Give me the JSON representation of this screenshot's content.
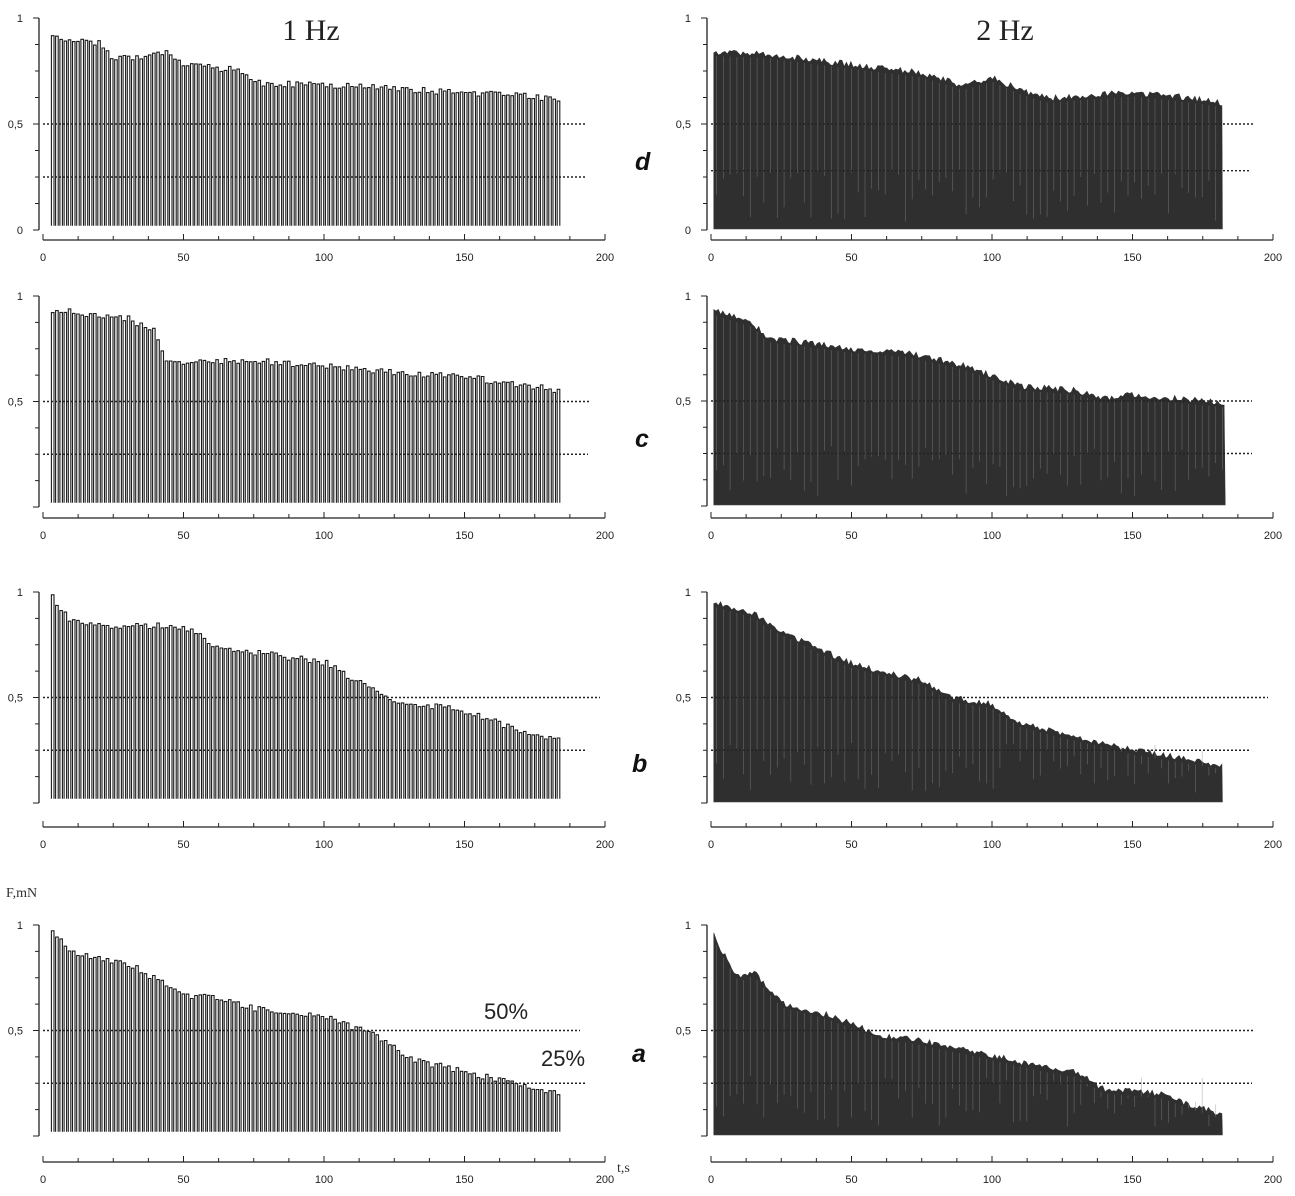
{
  "figure": {
    "col_titles": [
      "1 Hz",
      "2 Hz"
    ],
    "row_letters": [
      "d",
      "c",
      "b",
      "a"
    ],
    "ylabel": "F,mN",
    "xlabel": "t,s",
    "annotations": [
      "50%",
      "25%"
    ]
  },
  "chart_data": [
    {
      "id": "d-1hz",
      "type": "line",
      "title": "1 Hz",
      "panel_letter": "d",
      "freq_hz": 1,
      "xlim": [
        0,
        200
      ],
      "ylim": [
        0,
        1
      ],
      "x_ticks": [
        0,
        50,
        100,
        150,
        200
      ],
      "y_ticks": [
        "0",
        "0,5",
        "1"
      ],
      "reference_lines": [
        0.5,
        0.25
      ],
      "envelope": {
        "t": [
          3,
          10,
          20,
          25,
          30,
          45,
          50,
          60,
          70,
          75,
          100,
          150,
          170,
          183
        ],
        "peak": [
          0.93,
          0.91,
          0.9,
          0.82,
          0.83,
          0.85,
          0.79,
          0.78,
          0.77,
          0.71,
          0.7,
          0.66,
          0.65,
          0.63
        ]
      }
    },
    {
      "id": "d-2hz",
      "type": "line",
      "title": "2 Hz",
      "panel_letter": "d",
      "freq_hz": 2,
      "xlim": [
        0,
        200
      ],
      "ylim": [
        0,
        1
      ],
      "x_ticks": [
        0,
        50,
        100,
        150,
        200
      ],
      "y_ticks": [
        "0",
        "0,5",
        "1"
      ],
      "reference_lines": [
        0.5,
        0.28
      ],
      "envelope": {
        "t": [
          1,
          20,
          50,
          75,
          90,
          100,
          110,
          120,
          150,
          165,
          182
        ],
        "peak": [
          0.84,
          0.83,
          0.78,
          0.74,
          0.68,
          0.72,
          0.66,
          0.62,
          0.65,
          0.63,
          0.6
        ]
      }
    },
    {
      "id": "c-1hz",
      "type": "line",
      "title": "",
      "panel_letter": "c",
      "freq_hz": 1,
      "xlim": [
        0,
        200
      ],
      "ylim": [
        0,
        1
      ],
      "x_ticks": [
        0,
        50,
        100,
        150,
        200
      ],
      "y_ticks": [
        "0,5",
        "1"
      ],
      "reference_lines": [
        0.5,
        0.25
      ],
      "envelope": {
        "t": [
          3,
          30,
          40,
          43,
          50,
          75,
          100,
          150,
          183
        ],
        "peak": [
          0.95,
          0.91,
          0.84,
          0.7,
          0.7,
          0.71,
          0.68,
          0.63,
          0.57
        ]
      }
    },
    {
      "id": "c-2hz",
      "type": "line",
      "title": "",
      "panel_letter": "c",
      "freq_hz": 2,
      "xlim": [
        0,
        200
      ],
      "ylim": [
        0,
        1
      ],
      "x_ticks": [
        0,
        50,
        100,
        150,
        200
      ],
      "y_ticks": [
        "0,5",
        "1"
      ],
      "reference_lines": [
        0.5,
        0.25
      ],
      "envelope": {
        "t": [
          1,
          15,
          20,
          50,
          70,
          90,
          100,
          110,
          130,
          140,
          150,
          183
        ],
        "peak": [
          0.93,
          0.87,
          0.8,
          0.75,
          0.73,
          0.67,
          0.62,
          0.57,
          0.55,
          0.51,
          0.53,
          0.49
        ]
      }
    },
    {
      "id": "b-1hz",
      "type": "line",
      "title": "",
      "panel_letter": "b",
      "freq_hz": 1,
      "xlim": [
        0,
        200
      ],
      "ylim": [
        0,
        1
      ],
      "x_ticks": [
        0,
        50,
        100,
        150,
        200
      ],
      "y_ticks": [
        "0,5",
        "1"
      ],
      "reference_lines": [
        0.5,
        0.25
      ],
      "envelope": {
        "t": [
          3,
          5,
          10,
          30,
          45,
          55,
          60,
          75,
          100,
          110,
          125,
          150,
          165,
          183
        ],
        "peak": [
          1.0,
          0.95,
          0.87,
          0.85,
          0.86,
          0.83,
          0.75,
          0.73,
          0.68,
          0.6,
          0.5,
          0.45,
          0.38,
          0.31
        ]
      }
    },
    {
      "id": "b-2hz",
      "type": "line",
      "title": "",
      "panel_letter": "b",
      "freq_hz": 2,
      "xlim": [
        0,
        200
      ],
      "ylim": [
        0,
        1
      ],
      "x_ticks": [
        0,
        50,
        100,
        150,
        200
      ],
      "y_ticks": [
        "0,5",
        "1"
      ],
      "reference_lines": [
        0.5,
        0.25
      ],
      "envelope": {
        "t": [
          1,
          15,
          20,
          40,
          50,
          75,
          85,
          100,
          110,
          125,
          150,
          182
        ],
        "peak": [
          0.95,
          0.9,
          0.85,
          0.72,
          0.66,
          0.58,
          0.5,
          0.47,
          0.38,
          0.33,
          0.25,
          0.18
        ]
      }
    },
    {
      "id": "a-1hz",
      "type": "line",
      "title": "",
      "panel_letter": "a",
      "freq_hz": 1,
      "xlim": [
        0,
        200
      ],
      "ylim": [
        0,
        1
      ],
      "x_ticks": [
        0,
        50,
        100,
        150,
        200
      ],
      "y_ticks": [
        "0,5",
        "1"
      ],
      "reference_lines": [
        0.5,
        0.25
      ],
      "envelope": {
        "t": [
          3,
          5,
          10,
          20,
          30,
          50,
          60,
          75,
          100,
          120,
          130,
          150,
          165,
          183
        ],
        "peak": [
          1.0,
          0.95,
          0.88,
          0.85,
          0.83,
          0.68,
          0.67,
          0.62,
          0.58,
          0.48,
          0.38,
          0.32,
          0.27,
          0.22
        ]
      }
    },
    {
      "id": "a-2hz",
      "type": "line",
      "title": "",
      "panel_letter": "a",
      "freq_hz": 2,
      "xlim": [
        0,
        200
      ],
      "ylim": [
        0,
        1
      ],
      "x_ticks": [
        0,
        50,
        100,
        150,
        200
      ],
      "y_ticks": [
        "0,5",
        "1"
      ],
      "reference_lines": [
        0.5,
        0.25
      ],
      "envelope": {
        "t": [
          1,
          5,
          10,
          15,
          25,
          40,
          50,
          60,
          75,
          100,
          120,
          130,
          140,
          160,
          170,
          182
        ],
        "peak": [
          0.95,
          0.85,
          0.75,
          0.78,
          0.63,
          0.58,
          0.53,
          0.48,
          0.45,
          0.38,
          0.32,
          0.3,
          0.22,
          0.2,
          0.15,
          0.1
        ]
      }
    }
  ]
}
